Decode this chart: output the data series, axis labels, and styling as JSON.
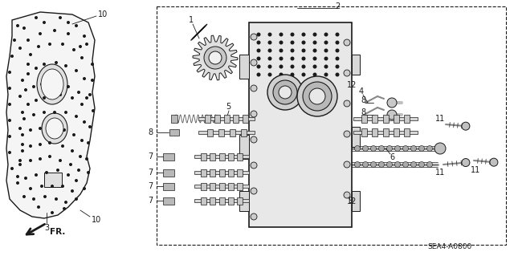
{
  "bg_color": "#ffffff",
  "line_color": "#1a1a1a",
  "fig_width": 6.4,
  "fig_height": 3.19,
  "dpi": 100,
  "diagram_code": "SEA4-A0800",
  "fr_label": "FR."
}
